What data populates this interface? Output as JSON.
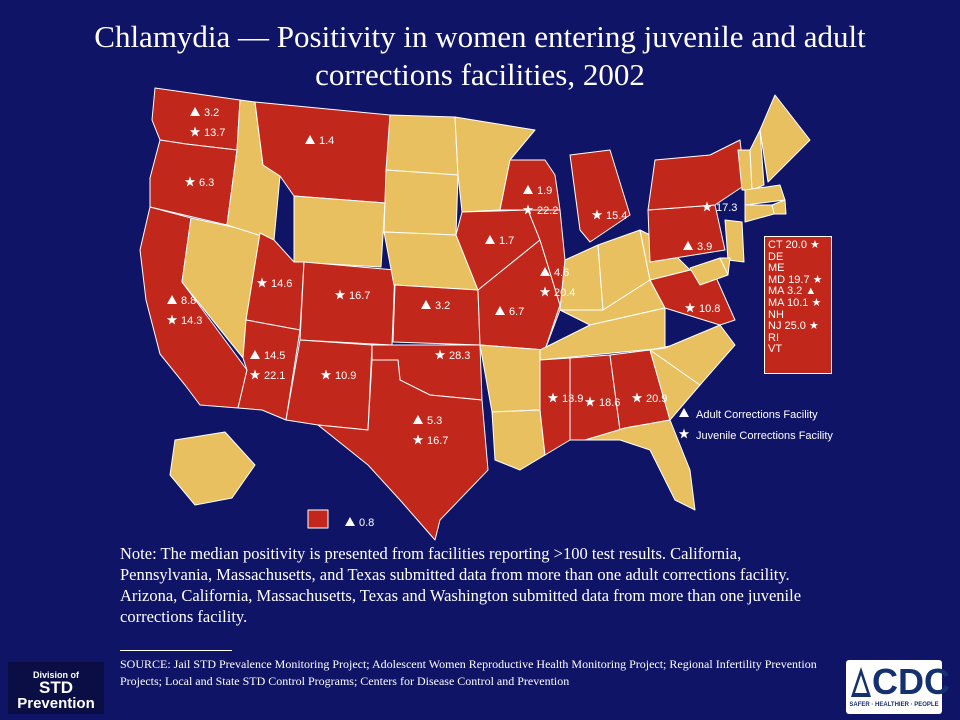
{
  "title": "Chlamydia — Positivity in women entering juvenile and adult corrections facilities, 2002",
  "colors": {
    "background": "#101466",
    "reported": "#c1281b",
    "not_reported": "#e8c060",
    "border": "#ffffff",
    "text": "#ffffff"
  },
  "legend": {
    "adult": {
      "icon": "triangle-icon",
      "label": "Adult Corrections Facility"
    },
    "juvenile": {
      "icon": "star-icon",
      "label": "Juvenile Corrections Facility"
    }
  },
  "states": [
    {
      "id": "WA",
      "reported": true,
      "adult": "3.2",
      "juvenile": "13.7"
    },
    {
      "id": "OR",
      "reported": true,
      "juvenile": "6.3"
    },
    {
      "id": "CA",
      "reported": true,
      "adult": "8.8",
      "juvenile": "14.3"
    },
    {
      "id": "MT",
      "reported": true,
      "adult": "1.4"
    },
    {
      "id": "UT",
      "reported": true,
      "juvenile": "14.6"
    },
    {
      "id": "CO",
      "reported": true,
      "juvenile": "16.7"
    },
    {
      "id": "AZ",
      "reported": true,
      "adult": "14.5",
      "juvenile": "22.1"
    },
    {
      "id": "NM",
      "reported": true,
      "juvenile": "10.9"
    },
    {
      "id": "KS",
      "reported": true,
      "adult": "3.2"
    },
    {
      "id": "OK",
      "reported": true,
      "juvenile": "28.3"
    },
    {
      "id": "TX",
      "reported": true,
      "adult": "5.3",
      "juvenile": "16.7"
    },
    {
      "id": "IA",
      "reported": true,
      "adult": "1.7"
    },
    {
      "id": "MO",
      "reported": true,
      "adult": "6.7"
    },
    {
      "id": "IL",
      "reported": true,
      "adult": "4.6",
      "juvenile": "20.4"
    },
    {
      "id": "WI",
      "reported": true,
      "adult": "1.9",
      "juvenile": "22.2"
    },
    {
      "id": "MI",
      "reported": true,
      "juvenile": "15.4"
    },
    {
      "id": "MS",
      "reported": true,
      "juvenile": "13.9"
    },
    {
      "id": "AL",
      "reported": true,
      "juvenile": "18.6"
    },
    {
      "id": "GA",
      "reported": true,
      "juvenile": "20.9"
    },
    {
      "id": "NY",
      "reported": true,
      "juvenile": "17.3"
    },
    {
      "id": "PA",
      "reported": true,
      "adult": "3.9"
    },
    {
      "id": "VA",
      "reported": true,
      "juvenile": "10.8"
    },
    {
      "id": "HI",
      "reported": true,
      "adult": "0.8"
    }
  ],
  "northeast_box": [
    {
      "state": "CT",
      "value": "20.0",
      "type": "juvenile"
    },
    {
      "state": "DE"
    },
    {
      "state": "ME"
    },
    {
      "state": "MD",
      "value": "19.7",
      "type": "juvenile"
    },
    {
      "state": "MA",
      "value": "3.2",
      "type": "adult"
    },
    {
      "state": "MA",
      "value": "10.1",
      "type": "juvenile"
    },
    {
      "state": "NH"
    },
    {
      "state": "NJ",
      "value": "25.0",
      "type": "juvenile"
    },
    {
      "state": "RI"
    },
    {
      "state": "VT"
    }
  ],
  "note": "Note: The median positivity is presented from facilities reporting >100 test results. California, Pennsylvania, Massachusetts, and Texas submitted data from more than one adult corrections facility. Arizona, California, Massachusetts, Texas and Washington submitted data from more than one juvenile corrections facility.",
  "source": "SOURCE: Jail STD Prevalence Monitoring Project; Adolescent Women Reproductive Health Monitoring Project; Regional Infertility Prevention Projects; Local and State STD Control Programs; Centers for Disease Control and Prevention",
  "logos": {
    "division": {
      "line1": "Division of",
      "line2": "STD",
      "line3": "Prevention"
    },
    "cdc": {
      "mark": "CDC",
      "tagline": "SAFER · HEALTHIER · PEOPLE"
    }
  }
}
